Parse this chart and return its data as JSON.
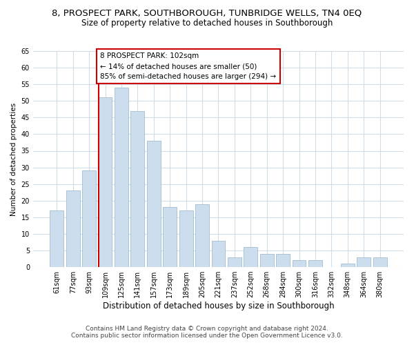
{
  "title_line1": "8, PROSPECT PARK, SOUTHBOROUGH, TUNBRIDGE WELLS, TN4 0EQ",
  "title_line2": "Size of property relative to detached houses in Southborough",
  "xlabel": "Distribution of detached houses by size in Southborough",
  "ylabel": "Number of detached properties",
  "bar_labels": [
    "61sqm",
    "77sqm",
    "93sqm",
    "109sqm",
    "125sqm",
    "141sqm",
    "157sqm",
    "173sqm",
    "189sqm",
    "205sqm",
    "221sqm",
    "237sqm",
    "252sqm",
    "268sqm",
    "284sqm",
    "300sqm",
    "316sqm",
    "332sqm",
    "348sqm",
    "364sqm",
    "380sqm"
  ],
  "bar_values": [
    17,
    23,
    29,
    51,
    54,
    47,
    38,
    18,
    17,
    19,
    8,
    3,
    6,
    4,
    4,
    2,
    2,
    0,
    1,
    3,
    3
  ],
  "bar_color": "#ccdded",
  "bar_edge_color": "#a0bdd0",
  "marker_color": "#cc0000",
  "annotation_line1": "8 PROSPECT PARK: 102sqm",
  "annotation_line2": "← 14% of detached houses are smaller (50)",
  "annotation_line3": "85% of semi-detached houses are larger (294) →",
  "annotation_box_color": "#ffffff",
  "annotation_box_edge_color": "#cc0000",
  "ylim": [
    0,
    65
  ],
  "yticks": [
    0,
    5,
    10,
    15,
    20,
    25,
    30,
    35,
    40,
    45,
    50,
    55,
    60,
    65
  ],
  "footer_line1": "Contains HM Land Registry data © Crown copyright and database right 2024.",
  "footer_line2": "Contains public sector information licensed under the Open Government Licence v3.0.",
  "background_color": "#ffffff",
  "grid_color": "#d0dce8",
  "title1_fontsize": 9.5,
  "title2_fontsize": 8.5,
  "xlabel_fontsize": 8.5,
  "ylabel_fontsize": 7.5,
  "tick_fontsize": 7,
  "annotation_fontsize": 7.5,
  "footer_fontsize": 6.5
}
